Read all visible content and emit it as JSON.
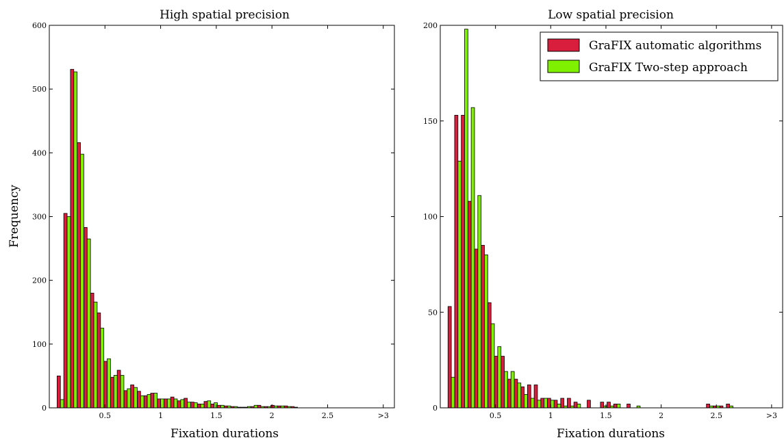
{
  "shared_labels": {
    "ylabel": "Frequency"
  },
  "colors": {
    "series_a": "#d81e3c",
    "series_b": "#7ff000",
    "stroke": "#000000"
  },
  "legend": {
    "entries": [
      "GraFIX automatic algorithms",
      "GraFIX Two-step approach"
    ],
    "position": "top-right"
  },
  "chart_data": [
    {
      "type": "bar",
      "title": "High spatial precision",
      "xlabel": "Fixation durations",
      "ylabel": "Frequency",
      "xlim": [
        0,
        3.1
      ],
      "ylim": [
        0,
        600
      ],
      "x_ticks": [
        {
          "value": 0.5,
          "label": "0.5"
        },
        {
          "value": 1,
          "label": "1"
        },
        {
          "value": 1.5,
          "label": "1.5"
        },
        {
          "value": 2,
          "label": "2"
        },
        {
          "value": 2.5,
          "label": "2.5"
        },
        {
          "value": 3,
          "label": ">3"
        }
      ],
      "y_ticks": [
        {
          "value": 0,
          "label": "0"
        },
        {
          "value": 100,
          "label": "100"
        },
        {
          "value": 200,
          "label": "200"
        },
        {
          "value": 300,
          "label": "300"
        },
        {
          "value": 400,
          "label": "400"
        },
        {
          "value": 500,
          "label": "500"
        },
        {
          "value": 600,
          "label": "600"
        }
      ],
      "bin_width": 0.06,
      "x": [
        0.1,
        0.16,
        0.22,
        0.28,
        0.34,
        0.4,
        0.46,
        0.52,
        0.58,
        0.64,
        0.7,
        0.76,
        0.82,
        0.88,
        0.94,
        1.0,
        1.06,
        1.12,
        1.18,
        1.24,
        1.3,
        1.36,
        1.42,
        1.48,
        1.54,
        1.6,
        1.66,
        1.72,
        1.78,
        1.84,
        1.9,
        1.96,
        2.02,
        2.08,
        2.14,
        2.2,
        2.26,
        2.32,
        2.38,
        2.44,
        2.5,
        2.56,
        2.62,
        2.68,
        2.74,
        2.8,
        2.86
      ],
      "series": [
        {
          "name": "GraFIX automatic algorithms",
          "values": [
            50,
            305,
            531,
            416,
            283,
            180,
            149,
            73,
            48,
            59,
            27,
            36,
            26,
            19,
            23,
            14,
            14,
            17,
            11,
            15,
            9,
            6,
            10,
            6,
            4,
            3,
            2,
            1,
            1,
            2,
            4,
            2,
            4,
            3,
            3,
            2,
            0,
            0,
            0,
            0,
            0,
            0,
            0,
            0,
            0,
            0,
            0
          ]
        },
        {
          "name": "GraFIX Two-step approach",
          "values": [
            13,
            300,
            527,
            398,
            265,
            166,
            125,
            77,
            51,
            51,
            30,
            32,
            19,
            21,
            23,
            14,
            14,
            14,
            13,
            9,
            8,
            6,
            11,
            8,
            4,
            3,
            2,
            1,
            2,
            4,
            2,
            2,
            3,
            3,
            2,
            1,
            0,
            0,
            0,
            0,
            0,
            0,
            0,
            0,
            0,
            0,
            0
          ]
        }
      ]
    },
    {
      "type": "bar",
      "title": "Low spatial precision",
      "xlabel": "Fixation durations",
      "ylabel": "",
      "xlim": [
        0,
        3.1
      ],
      "ylim": [
        0,
        200
      ],
      "x_ticks": [
        {
          "value": 0.5,
          "label": "0.5"
        },
        {
          "value": 1,
          "label": "1"
        },
        {
          "value": 1.5,
          "label": "1.5"
        },
        {
          "value": 2,
          "label": "2"
        },
        {
          "value": 2.5,
          "label": "2.5"
        },
        {
          "value": 3,
          "label": ">3"
        }
      ],
      "y_ticks": [
        {
          "value": 0,
          "label": "0"
        },
        {
          "value": 50,
          "label": "50"
        },
        {
          "value": 100,
          "label": "100"
        },
        {
          "value": 150,
          "label": "150"
        },
        {
          "value": 200,
          "label": "200"
        }
      ],
      "bin_width": 0.06,
      "x": [
        0.1,
        0.16,
        0.22,
        0.28,
        0.34,
        0.4,
        0.46,
        0.52,
        0.58,
        0.64,
        0.7,
        0.76,
        0.82,
        0.88,
        0.94,
        1.0,
        1.06,
        1.12,
        1.18,
        1.24,
        1.3,
        1.36,
        1.42,
        1.48,
        1.54,
        1.6,
        1.66,
        1.72,
        1.78,
        1.84,
        1.9,
        1.96,
        2.02,
        2.08,
        2.14,
        2.2,
        2.26,
        2.32,
        2.38,
        2.44,
        2.5,
        2.56,
        2.62,
        2.68,
        2.74,
        2.8,
        2.86
      ],
      "series": [
        {
          "name": "GraFIX automatic algorithms",
          "values": [
            53,
            153,
            153,
            108,
            83,
            85,
            55,
            27,
            27,
            15,
            15,
            11,
            12,
            12,
            5,
            5,
            4,
            5,
            5,
            3,
            0,
            4,
            0,
            3,
            3,
            2,
            0,
            2,
            0,
            0,
            0,
            0,
            0,
            0,
            0,
            0,
            0,
            0,
            0,
            2,
            1,
            1,
            2,
            0,
            0,
            0,
            0
          ]
        },
        {
          "name": "GraFIX Two-step approach",
          "values": [
            16,
            129,
            198,
            157,
            111,
            80,
            44,
            32,
            19,
            19,
            13,
            7,
            5,
            4,
            5,
            4,
            2,
            1,
            1,
            2,
            0,
            0,
            0,
            1,
            1,
            2,
            0,
            0,
            1,
            0,
            0,
            0,
            0,
            0,
            0,
            0,
            0,
            0,
            0,
            1,
            1,
            0,
            1,
            0,
            0,
            0,
            0
          ]
        }
      ]
    }
  ]
}
